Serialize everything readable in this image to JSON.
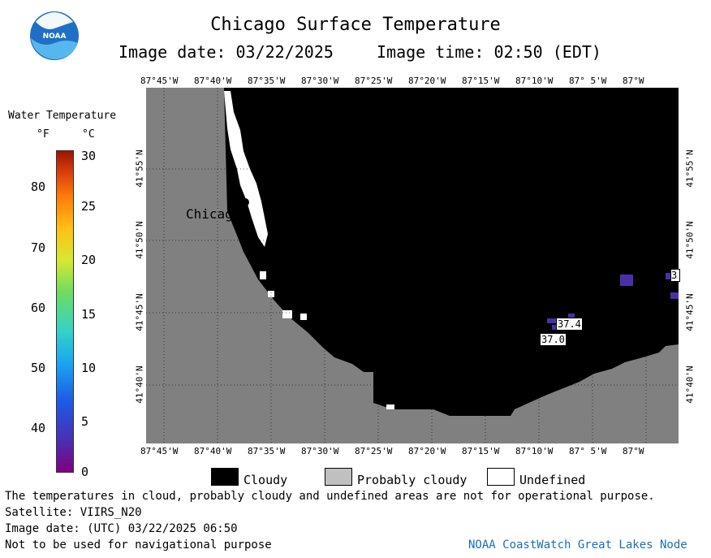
{
  "header": {
    "title": "Chicago Surface Temperature",
    "image_date": "Image date: 03/22/2025",
    "image_time": "Image time: 02:50 (EDT)"
  },
  "logo": {
    "text": "NOAA",
    "colors": {
      "primary": "#1f6fc4",
      "light": "#58b6ee"
    }
  },
  "colorbar": {
    "title": "Water Temperature",
    "f_unit": "°F",
    "c_unit": "°C",
    "f_ticks": [
      "80",
      "70",
      "60",
      "50",
      "40"
    ],
    "c_ticks": [
      "30",
      "25",
      "20",
      "15",
      "10",
      "5",
      "0"
    ]
  },
  "map": {
    "top_lon_labels": [
      "87°45'W",
      "87°40'W",
      "87°35'W",
      "87°30'W",
      "87°25'W",
      "87°20'W",
      "87°15'W",
      "87°10'W",
      "87° 5'W",
      "87°W"
    ],
    "bottom_lon_labels": [
      "87°45'W",
      "87°40'W",
      "87°35'W",
      "87°30'W",
      "87°25'W",
      "87°20'W",
      "87°15'W",
      "87°10'W",
      "87° 5'W",
      "87°W"
    ],
    "lat_labels": [
      "41°55'N",
      "41°50'N",
      "41°45'N",
      "41°40'N"
    ],
    "city_label": "Chicago",
    "data_labels": [
      "37.4",
      "37.0",
      "3"
    ],
    "colors": {
      "land": "#808080",
      "cloud": "#000000",
      "undefined": "#ffffff",
      "data": "#4a30a8"
    }
  },
  "legend": {
    "items": [
      {
        "label": "Cloudy",
        "color": "#000000"
      },
      {
        "label": "Probably cloudy",
        "color": "#c0c0c0"
      },
      {
        "label": "Undefined",
        "color": "#ffffff"
      }
    ]
  },
  "footer": {
    "note": "The temperatures in cloud, probably cloudy and undefined areas are not for operational purpose.",
    "satellite": "Satellite: VIIRS_N20",
    "utc_date": "Image date: (UTC) 03/22/2025  06:50",
    "nav_warning": "Not to be used for navigational purpose",
    "credit": "NOAA CoastWatch Great Lakes Node"
  }
}
